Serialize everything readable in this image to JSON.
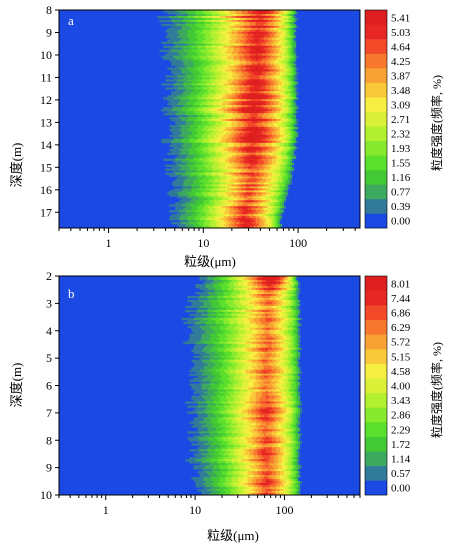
{
  "chart_data": [
    {
      "type": "heatmap",
      "panel_label": "a",
      "xlabel": "粒级(μm)",
      "ylabel": "深度(m)",
      "colorbar_label": "粒度强度(频率, %)",
      "x_scale": "log",
      "xlim": [
        0.3,
        450
      ],
      "x_ticks": [
        1,
        10,
        100
      ],
      "x_tick_labels": [
        "1",
        "10",
        "100"
      ],
      "ylim": [
        8,
        17.7
      ],
      "y_ticks": [
        8,
        9,
        10,
        11,
        12,
        13,
        14,
        15,
        16,
        17
      ],
      "y_tick_labels": [
        "8",
        "9",
        "10",
        "11",
        "12",
        "13",
        "14",
        "15",
        "16",
        "17"
      ],
      "color_levels": [
        "0.00",
        "0.39",
        "0.77",
        "1.16",
        "1.55",
        "1.93",
        "2.32",
        "2.71",
        "3.09",
        "3.48",
        "3.87",
        "4.25",
        "4.64",
        "5.03",
        "5.41"
      ],
      "depth_rows": [
        {
          "depth": 8,
          "peak_um": 40,
          "onset_um": 2.4,
          "end_um": 95,
          "max": 5.2
        },
        {
          "depth": 9,
          "peak_um": 38,
          "onset_um": 2.5,
          "end_um": 95,
          "max": 5.0
        },
        {
          "depth": 10,
          "peak_um": 37,
          "onset_um": 2.6,
          "end_um": 95,
          "max": 5.1
        },
        {
          "depth": 11,
          "peak_um": 36,
          "onset_um": 2.7,
          "end_um": 96,
          "max": 5.2
        },
        {
          "depth": 12,
          "peak_um": 35,
          "onset_um": 2.7,
          "end_um": 98,
          "max": 5.3
        },
        {
          "depth": 13,
          "peak_um": 34,
          "onset_um": 2.8,
          "end_um": 98,
          "max": 5.2
        },
        {
          "depth": 14,
          "peak_um": 33,
          "onset_um": 2.8,
          "end_um": 96,
          "max": 5.1
        },
        {
          "depth": 15,
          "peak_um": 32,
          "onset_um": 2.9,
          "end_um": 90,
          "max": 4.6
        },
        {
          "depth": 16,
          "peak_um": 30,
          "onset_um": 3.0,
          "end_um": 80,
          "max": 4.4
        },
        {
          "depth": 17,
          "peak_um": 28,
          "onset_um": 3.4,
          "end_um": 70,
          "max": 4.8
        },
        {
          "depth": 17.7,
          "peak_um": 28,
          "onset_um": 3.6,
          "end_um": 65,
          "max": 4.6
        }
      ]
    },
    {
      "type": "heatmap",
      "panel_label": "b",
      "xlabel": "粒级(μm)",
      "ylabel": "深度(m)",
      "colorbar_label": "粒度强度(频率, %)",
      "x_scale": "log",
      "xlim": [
        0.3,
        700
      ],
      "x_ticks": [
        1,
        10,
        100
      ],
      "x_tick_labels": [
        "1",
        "10",
        "100"
      ],
      "ylim": [
        2,
        10
      ],
      "y_ticks": [
        2,
        3,
        4,
        5,
        6,
        7,
        8,
        9,
        10
      ],
      "y_tick_labels": [
        "2",
        "3",
        "4",
        "5",
        "6",
        "7",
        "8",
        "9",
        "10"
      ],
      "color_levels": [
        "0.00",
        "0.57",
        "1.14",
        "1.72",
        "2.29",
        "2.86",
        "3.43",
        "4.00",
        "4.58",
        "5.15",
        "5.72",
        "6.29",
        "6.86",
        "7.44",
        "8.01"
      ],
      "depth_rows": [
        {
          "depth": 2,
          "peak_um": 70,
          "onset_um": 9,
          "end_um": 140,
          "max": 8.0
        },
        {
          "depth": 3,
          "peak_um": 65,
          "onset_um": 5,
          "end_um": 150,
          "max": 6.0
        },
        {
          "depth": 4,
          "peak_um": 65,
          "onset_um": 5,
          "end_um": 150,
          "max": 6.5
        },
        {
          "depth": 5,
          "peak_um": 63,
          "onset_um": 6,
          "end_um": 150,
          "max": 6.6
        },
        {
          "depth": 6,
          "peak_um": 63,
          "onset_um": 6,
          "end_um": 150,
          "max": 6.3
        },
        {
          "depth": 7,
          "peak_um": 62,
          "onset_um": 6,
          "end_um": 150,
          "max": 6.8
        },
        {
          "depth": 8,
          "peak_um": 62,
          "onset_um": 6,
          "end_um": 150,
          "max": 6.8
        },
        {
          "depth": 9,
          "peak_um": 62,
          "onset_um": 6,
          "end_um": 150,
          "max": 6.8
        },
        {
          "depth": 10,
          "peak_um": 62,
          "onset_um": 7,
          "end_um": 150,
          "max": 6.9
        }
      ]
    }
  ],
  "palette": [
    "#1b49e3",
    "#317a9a",
    "#3ca95f",
    "#43c935",
    "#5ae02c",
    "#87ea2e",
    "#b2f030",
    "#daf138",
    "#f6ee40",
    "#f9c93a",
    "#f9a234",
    "#f8772f",
    "#f24a29",
    "#e62723",
    "#de1f1f"
  ]
}
